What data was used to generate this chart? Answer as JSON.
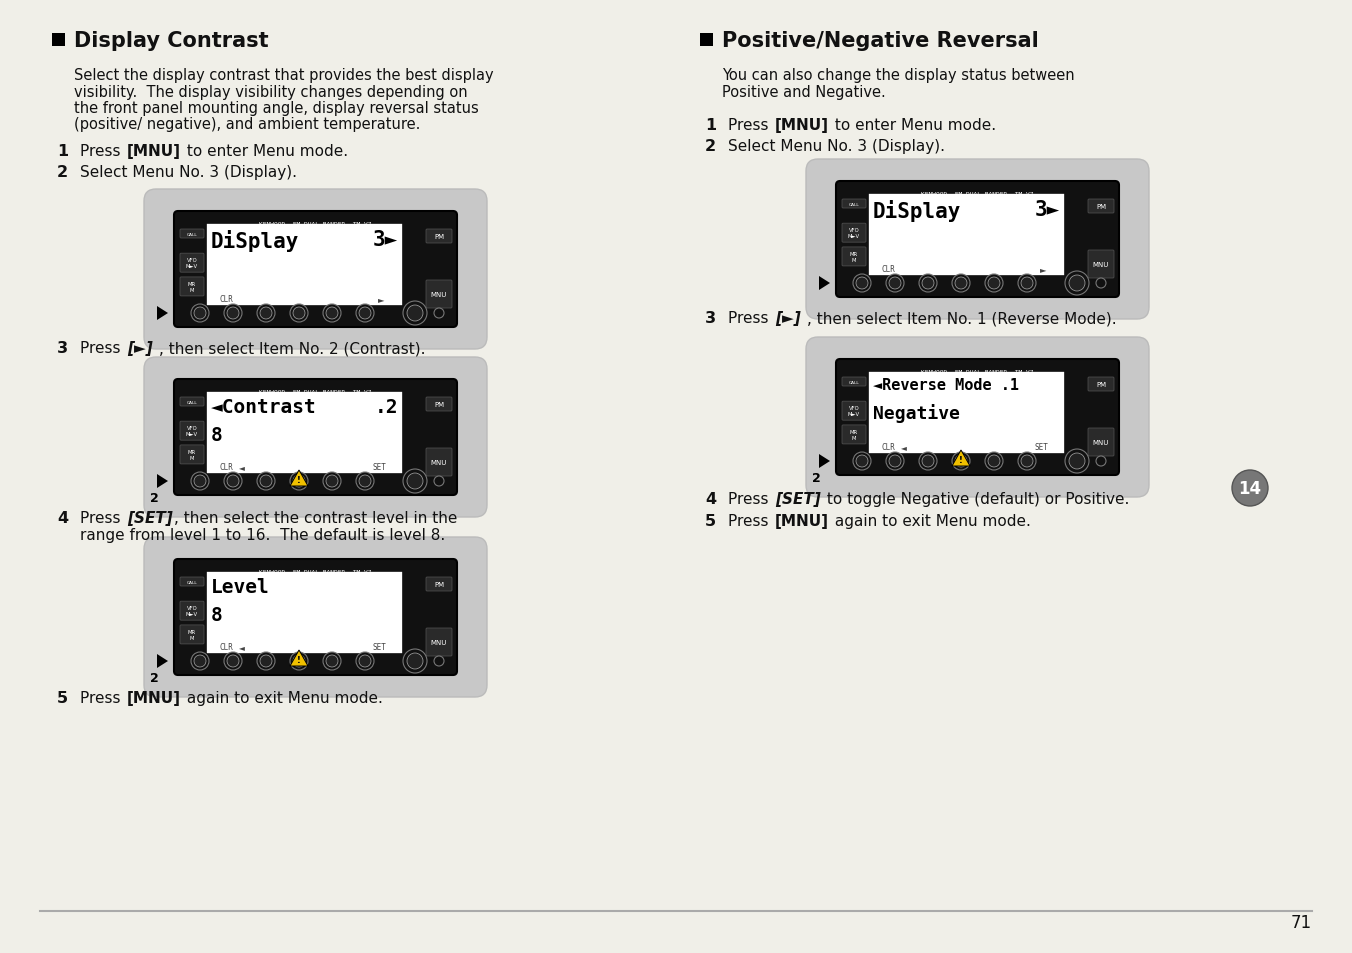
{
  "bg_color": "#f0efe8",
  "page_number": "71",
  "left_title": "Display Contrast",
  "right_title": "Positive/Negative Reversal",
  "left_intro_lines": [
    "Select the display contrast that provides the best display",
    "visibility.  The display visibility changes depending on",
    "the front panel mounting angle, display reversal status",
    "(positive/ negative), and ambient temperature."
  ],
  "right_intro_lines": [
    "You can also change the display status between",
    "Positive and Negative."
  ],
  "kenwood_label": "KENWOOD  FM DUAL BANDER  TM-V7",
  "text_color": "#111111",
  "device_bg": "#111111",
  "screen_bg": "#ffffff",
  "btn_color": "#2a2a2a",
  "shadow_color": "#c8c8c8",
  "badge_color": "#777777",
  "divider_color": "#aaaaaa"
}
